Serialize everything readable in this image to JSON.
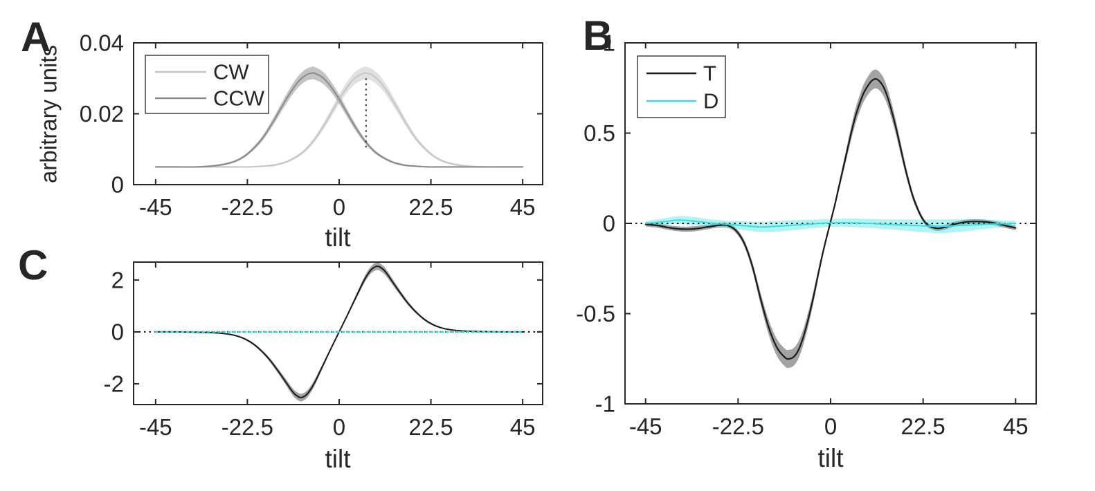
{
  "figure": {
    "background": "#ffffff",
    "frame_color": "#262626"
  },
  "chart_data": [
    {
      "id": "A",
      "type": "line",
      "panel_label": "A",
      "xlabel": "tilt",
      "ylabel": "arbitrary units",
      "xlim": [
        -50.4,
        49.9
      ],
      "ylim": [
        0,
        0.04
      ],
      "grid": false,
      "legend_position": "upper-left",
      "xticks": {
        "values": [
          -45,
          -22.5,
          0,
          22.5,
          45
        ],
        "labels": [
          "-45",
          "-22.5",
          "0",
          "22.5",
          "45"
        ]
      },
      "yticks": {
        "values": [
          0,
          0.02,
          0.04
        ],
        "labels": [
          "0",
          "0.02",
          "0.04"
        ]
      },
      "legend": {
        "items": [
          {
            "label": "CW",
            "color": "#c6c6c6"
          },
          {
            "label": "CCW",
            "color": "#8a8a8a"
          }
        ]
      },
      "series": [
        {
          "name": "CW",
          "color": "#c6c6c6",
          "width": 2,
          "band_color": "#bdbdbd",
          "band_opacity": 0.45,
          "x": [
            -45,
            -35,
            -28,
            -25,
            -22,
            -19,
            -16,
            -13,
            -10,
            -8,
            -6,
            -4,
            -2,
            0,
            2,
            4,
            6,
            6.5,
            8,
            10,
            12,
            14,
            16,
            18,
            20,
            23,
            26,
            30,
            35,
            40,
            45
          ],
          "y": [
            0.005,
            0.005,
            0.005,
            0.005,
            0.005,
            0.0052,
            0.0055,
            0.0064,
            0.0082,
            0.0101,
            0.0128,
            0.0162,
            0.0201,
            0.0241,
            0.0276,
            0.0302,
            0.0314,
            0.0315,
            0.031,
            0.0291,
            0.0259,
            0.0221,
            0.0181,
            0.0144,
            0.0114,
            0.0082,
            0.0064,
            0.0054,
            0.005,
            0.005,
            0.005
          ],
          "e": [
            0.0002,
            0.0002,
            0.0002,
            0.0002,
            0.0002,
            0.0002,
            0.0003,
            0.0003,
            0.0004,
            0.0005,
            0.0007,
            0.0009,
            0.0011,
            0.0013,
            0.0015,
            0.0017,
            0.0018,
            0.0018,
            0.0017,
            0.0016,
            0.0014,
            0.0012,
            0.001,
            0.0008,
            0.0006,
            0.0004,
            0.0003,
            0.0003,
            0.0002,
            0.0002,
            0.0002
          ]
        },
        {
          "name": "CCW",
          "color": "#8a8a8a",
          "width": 2,
          "band_color": "#7d7d7d",
          "band_opacity": 0.45,
          "x": [
            -45,
            -40,
            -35,
            -30,
            -26,
            -23,
            -20,
            -18,
            -16,
            -14,
            -12,
            -10,
            -8,
            -6.5,
            -6,
            -4,
            -2,
            0,
            2,
            4,
            6,
            8,
            10,
            13,
            16,
            19,
            22,
            25,
            28,
            35,
            45
          ],
          "y": [
            0.005,
            0.005,
            0.005,
            0.0054,
            0.0064,
            0.0082,
            0.0114,
            0.0144,
            0.0181,
            0.0221,
            0.0259,
            0.0291,
            0.031,
            0.0315,
            0.0314,
            0.0302,
            0.0276,
            0.0241,
            0.0201,
            0.0162,
            0.0128,
            0.0101,
            0.0082,
            0.0064,
            0.0055,
            0.0052,
            0.005,
            0.005,
            0.005,
            0.005,
            0.005
          ],
          "e": [
            0.0002,
            0.0002,
            0.0002,
            0.0003,
            0.0003,
            0.0004,
            0.0006,
            0.0008,
            0.001,
            0.0012,
            0.0014,
            0.0016,
            0.0017,
            0.0018,
            0.0018,
            0.0017,
            0.0015,
            0.0013,
            0.0011,
            0.0009,
            0.0007,
            0.0005,
            0.0004,
            0.0003,
            0.0003,
            0.0002,
            0.0002,
            0.0002,
            0.0002,
            0.0002,
            0.0002
          ]
        }
      ],
      "annotations": [
        {
          "type": "vline-dotted",
          "x": 6.6,
          "y1": 0.0105,
          "y2": 0.0305,
          "color": "#333333"
        }
      ]
    },
    {
      "id": "B",
      "type": "line",
      "panel_label": "B",
      "xlabel": "tilt",
      "ylabel": "",
      "xlim": [
        -50,
        50
      ],
      "ylim": [
        -1,
        1
      ],
      "grid": false,
      "legend_position": "upper-left",
      "xticks": {
        "values": [
          -45,
          -22.5,
          0,
          22.5,
          45
        ],
        "labels": [
          "-45",
          "-22.5",
          "0",
          "22.5",
          "45"
        ]
      },
      "yticks": {
        "values": [
          -1,
          -0.5,
          0,
          0.5,
          1
        ],
        "labels": [
          "-1",
          "-0.5",
          "0",
          "0.5",
          "1"
        ]
      },
      "legend": {
        "items": [
          {
            "label": "T",
            "color": "#1a1a1a"
          },
          {
            "label": "D",
            "color": "#3adcdc"
          }
        ]
      },
      "series": [
        {
          "name": "T",
          "color": "#1a1a1a",
          "width": 2.2,
          "band_color": "#8c8c8c",
          "band_opacity": 0.8,
          "x": [
            -45,
            -42,
            -39,
            -36,
            -33,
            -30,
            -27,
            -25,
            -23,
            -21,
            -19,
            -17,
            -15,
            -13,
            -11,
            -10,
            -9,
            -8,
            -7,
            -6,
            -5,
            -4,
            -3,
            -2,
            -1,
            0,
            1,
            2,
            3,
            4,
            5,
            6,
            7,
            8,
            9,
            10,
            11,
            12,
            13,
            14,
            15,
            16,
            17,
            18,
            19,
            20,
            21,
            22,
            23,
            24,
            26,
            28,
            30,
            33,
            36,
            39,
            42,
            45
          ],
          "y": [
            -0.005,
            -0.012,
            -0.025,
            -0.032,
            -0.03,
            -0.02,
            -0.01,
            -0.012,
            -0.04,
            -0.11,
            -0.24,
            -0.42,
            -0.58,
            -0.69,
            -0.745,
            -0.75,
            -0.74,
            -0.71,
            -0.655,
            -0.58,
            -0.49,
            -0.39,
            -0.28,
            -0.175,
            -0.08,
            0.01,
            0.1,
            0.2,
            0.3,
            0.4,
            0.5,
            0.59,
            0.66,
            0.72,
            0.76,
            0.79,
            0.8,
            0.785,
            0.75,
            0.69,
            0.61,
            0.52,
            0.42,
            0.32,
            0.23,
            0.15,
            0.09,
            0.04,
            0.005,
            -0.015,
            -0.028,
            -0.02,
            -0.005,
            0.008,
            0.01,
            0.005,
            -0.01,
            -0.025
          ],
          "e": [
            0.012,
            0.013,
            0.013,
            0.014,
            0.014,
            0.013,
            0.013,
            0.013,
            0.014,
            0.018,
            0.024,
            0.033,
            0.041,
            0.047,
            0.049,
            0.05,
            0.049,
            0.048,
            0.045,
            0.041,
            0.037,
            0.032,
            0.026,
            0.021,
            0.016,
            0.013,
            0.017,
            0.022,
            0.027,
            0.032,
            0.037,
            0.042,
            0.045,
            0.048,
            0.05,
            0.052,
            0.052,
            0.051,
            0.05,
            0.047,
            0.043,
            0.038,
            0.033,
            0.028,
            0.024,
            0.02,
            0.017,
            0.014,
            0.012,
            0.013,
            0.014,
            0.013,
            0.013,
            0.013,
            0.013,
            0.012,
            0.013,
            0.013
          ]
        },
        {
          "name": "D",
          "color": "#3adcdc",
          "width": 2,
          "band_color": "#55e6e6",
          "band_opacity": 0.45,
          "x": [
            -45,
            -41,
            -37,
            -33,
            -29,
            -25,
            -21,
            -17,
            -13,
            -9,
            -5,
            -1,
            3,
            7,
            11,
            15,
            19,
            23,
            27,
            31,
            35,
            39,
            42,
            45
          ],
          "y": [
            0,
            0.008,
            0.018,
            0.012,
            0.002,
            -0.005,
            -0.013,
            -0.02,
            -0.016,
            -0.01,
            -0.004,
            0.002,
            0.004,
            0.002,
            -0.002,
            -0.006,
            -0.01,
            -0.014,
            -0.016,
            -0.012,
            -0.008,
            -0.004,
            -0.002,
            0
          ],
          "e": [
            0.012,
            0.018,
            0.022,
            0.022,
            0.02,
            0.02,
            0.024,
            0.028,
            0.03,
            0.028,
            0.024,
            0.022,
            0.022,
            0.024,
            0.026,
            0.028,
            0.032,
            0.036,
            0.038,
            0.036,
            0.03,
            0.024,
            0.018,
            0.014
          ]
        }
      ],
      "annotations": [
        {
          "type": "hline-dotted",
          "y": 0,
          "color": "#111111"
        }
      ]
    },
    {
      "id": "C",
      "type": "line",
      "panel_label": "C",
      "xlabel": "tilt",
      "ylabel": "",
      "xlim": [
        -50.4,
        49.9
      ],
      "ylim": [
        -2.8,
        2.69
      ],
      "grid": false,
      "xticks": {
        "values": [
          -45,
          -22.5,
          0,
          22.5,
          45
        ],
        "labels": [
          "-45",
          "-22.5",
          "0",
          "22.5",
          "45"
        ]
      },
      "yticks": {
        "values": [
          -2,
          0,
          2
        ],
        "labels": [
          "-2",
          "0",
          "2"
        ]
      },
      "series": [
        {
          "name": "T",
          "color": "#1a1a1a",
          "width": 2,
          "band_color": "#8c8c8c",
          "band_opacity": 0.8,
          "x": [
            -45,
            -40,
            -36,
            -33,
            -30,
            -27,
            -25,
            -23,
            -21,
            -19,
            -17,
            -15,
            -13,
            -12,
            -11,
            -10,
            -9.5,
            -9,
            -8,
            -7,
            -6,
            -5,
            -4,
            -3,
            -2,
            -1,
            0,
            1,
            2,
            3,
            4,
            5,
            6,
            7,
            8,
            9,
            9.5,
            10,
            11,
            12,
            13,
            15,
            17,
            19,
            21,
            23,
            25,
            27,
            30,
            33,
            36,
            40,
            45
          ],
          "y": [
            0,
            0,
            -0.01,
            -0.02,
            -0.04,
            -0.09,
            -0.16,
            -0.28,
            -0.47,
            -0.74,
            -1.08,
            -1.5,
            -1.95,
            -2.18,
            -2.38,
            -2.5,
            -2.53,
            -2.52,
            -2.42,
            -2.22,
            -1.95,
            -1.63,
            -1.3,
            -0.97,
            -0.64,
            -0.32,
            0,
            0.32,
            0.64,
            0.97,
            1.3,
            1.63,
            1.95,
            2.22,
            2.42,
            2.52,
            2.53,
            2.5,
            2.38,
            2.18,
            1.95,
            1.5,
            1.08,
            0.74,
            0.47,
            0.28,
            0.16,
            0.09,
            0.04,
            0.02,
            0.01,
            0,
            0
          ],
          "e": [
            0.02,
            0.02,
            0.021,
            0.021,
            0.022,
            0.025,
            0.028,
            0.034,
            0.044,
            0.057,
            0.074,
            0.095,
            0.118,
            0.129,
            0.139,
            0.145,
            0.147,
            0.146,
            0.141,
            0.131,
            0.118,
            0.102,
            0.085,
            0.069,
            0.052,
            0.036,
            0.02,
            0.036,
            0.052,
            0.069,
            0.085,
            0.102,
            0.118,
            0.131,
            0.141,
            0.146,
            0.147,
            0.145,
            0.139,
            0.129,
            0.118,
            0.095,
            0.074,
            0.057,
            0.044,
            0.034,
            0.028,
            0.025,
            0.022,
            0.021,
            0.021,
            0.02,
            0.02
          ]
        },
        {
          "name": "D",
          "color": "#2adcdc",
          "width": 2.5,
          "dash": "2.5 5",
          "x": [
            -45,
            45
          ],
          "y": [
            0,
            0
          ]
        }
      ],
      "annotations": [
        {
          "type": "hline-dotted",
          "y": 0,
          "color": "#111111"
        }
      ]
    }
  ]
}
